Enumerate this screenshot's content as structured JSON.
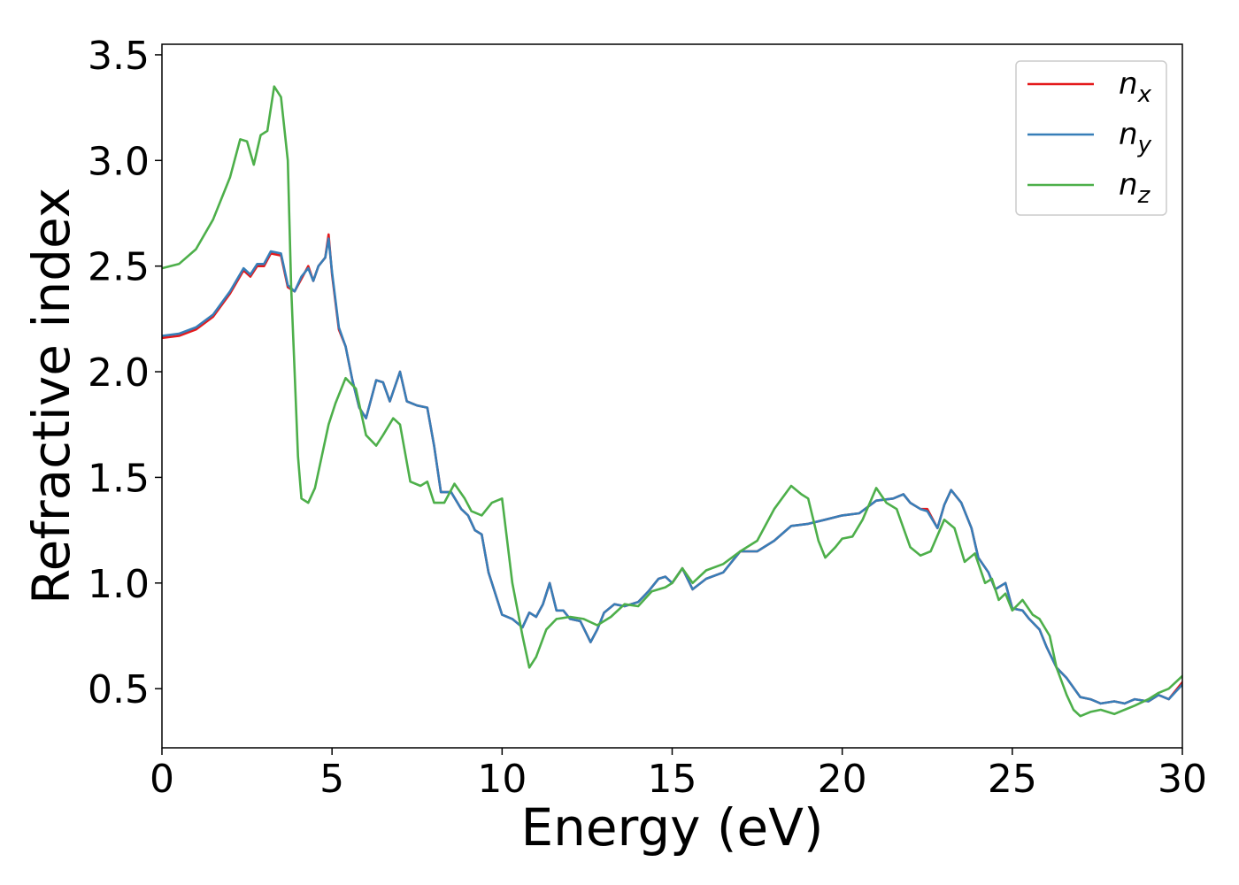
{
  "chart_data": {
    "type": "line",
    "title": "",
    "xlabel": "Energy (eV)",
    "ylabel": "Refractive index",
    "xlim": [
      0,
      30
    ],
    "ylim": [
      0.22,
      3.55
    ],
    "xticks": [
      0,
      5,
      10,
      15,
      20,
      25,
      30
    ],
    "xtick_labels": [
      "0",
      "5",
      "10",
      "15",
      "20",
      "25",
      "30"
    ],
    "yticks": [
      0.5,
      1.0,
      1.5,
      2.0,
      2.5,
      3.0,
      3.5
    ],
    "ytick_labels": [
      "0.5",
      "1.0",
      "1.5",
      "2.0",
      "2.5",
      "3.0",
      "3.5"
    ],
    "grid": false,
    "legend_position": "top-right",
    "series": [
      {
        "name": "nx",
        "label_base": "n",
        "label_sub": "x",
        "color": "#e41a1c",
        "x": [
          0,
          0.5,
          1,
          1.5,
          2,
          2.4,
          2.6,
          2.8,
          3.0,
          3.2,
          3.5,
          3.7,
          3.9,
          4.1,
          4.3,
          4.45,
          4.6,
          4.8,
          4.9,
          5.0,
          5.2,
          5.4,
          5.6,
          5.8,
          6.0,
          6.3,
          6.5,
          6.7,
          7.0,
          7.2,
          7.5,
          7.8,
          8.0,
          8.2,
          8.5,
          8.8,
          9.0,
          9.2,
          9.4,
          9.6,
          10.0,
          10.3,
          10.6,
          10.8,
          11.0,
          11.2,
          11.4,
          11.6,
          11.8,
          12.0,
          12.3,
          12.6,
          12.8,
          13.0,
          13.3,
          13.6,
          14.0,
          14.3,
          14.6,
          14.8,
          15.0,
          15.3,
          15.6,
          16.0,
          16.5,
          17.0,
          17.5,
          18.0,
          18.5,
          19.0,
          19.5,
          20.0,
          20.5,
          21.0,
          21.5,
          21.8,
          22.0,
          22.3,
          22.5,
          22.8,
          23.0,
          23.2,
          23.5,
          23.8,
          24.0,
          24.3,
          24.5,
          24.8,
          25.0,
          25.3,
          25.5,
          25.8,
          26.0,
          26.3,
          26.6,
          27.0,
          27.3,
          27.6,
          28.0,
          28.3,
          28.6,
          29.0,
          29.3,
          29.6,
          30.0
        ],
        "y": [
          2.16,
          2.17,
          2.2,
          2.26,
          2.37,
          2.48,
          2.45,
          2.5,
          2.5,
          2.56,
          2.55,
          2.4,
          2.38,
          2.44,
          2.5,
          2.43,
          2.5,
          2.54,
          2.65,
          2.46,
          2.2,
          2.12,
          1.96,
          1.83,
          1.78,
          1.96,
          1.95,
          1.86,
          2.0,
          1.86,
          1.84,
          1.83,
          1.65,
          1.43,
          1.43,
          1.35,
          1.32,
          1.25,
          1.23,
          1.05,
          0.85,
          0.83,
          0.79,
          0.86,
          0.84,
          0.9,
          1.0,
          0.87,
          0.87,
          0.83,
          0.82,
          0.72,
          0.78,
          0.86,
          0.9,
          0.89,
          0.91,
          0.96,
          1.02,
          1.03,
          1.0,
          1.07,
          0.97,
          1.02,
          1.05,
          1.15,
          1.15,
          1.2,
          1.27,
          1.28,
          1.3,
          1.32,
          1.33,
          1.39,
          1.4,
          1.42,
          1.38,
          1.35,
          1.35,
          1.26,
          1.37,
          1.44,
          1.38,
          1.26,
          1.12,
          1.05,
          0.97,
          1.0,
          0.88,
          0.87,
          0.83,
          0.78,
          0.7,
          0.6,
          0.55,
          0.46,
          0.45,
          0.43,
          0.44,
          0.43,
          0.45,
          0.44,
          0.47,
          0.45,
          0.53
        ]
      },
      {
        "name": "ny",
        "label_base": "n",
        "label_sub": "y",
        "color": "#377eb8",
        "x": [
          0,
          0.5,
          1,
          1.5,
          2,
          2.4,
          2.6,
          2.8,
          3.0,
          3.2,
          3.5,
          3.7,
          3.9,
          4.1,
          4.3,
          4.45,
          4.6,
          4.8,
          4.9,
          5.0,
          5.2,
          5.4,
          5.6,
          5.8,
          6.0,
          6.3,
          6.5,
          6.7,
          7.0,
          7.2,
          7.5,
          7.8,
          8.0,
          8.2,
          8.5,
          8.8,
          9.0,
          9.2,
          9.4,
          9.6,
          10.0,
          10.3,
          10.6,
          10.8,
          11.0,
          11.2,
          11.4,
          11.6,
          11.8,
          12.0,
          12.3,
          12.6,
          12.8,
          13.0,
          13.3,
          13.6,
          14.0,
          14.3,
          14.6,
          14.8,
          15.0,
          15.3,
          15.6,
          16.0,
          16.5,
          17.0,
          17.5,
          18.0,
          18.5,
          19.0,
          19.5,
          20.0,
          20.5,
          21.0,
          21.5,
          21.8,
          22.0,
          22.3,
          22.5,
          22.8,
          23.0,
          23.2,
          23.5,
          23.8,
          24.0,
          24.3,
          24.5,
          24.8,
          25.0,
          25.3,
          25.5,
          25.8,
          26.0,
          26.3,
          26.6,
          27.0,
          27.3,
          27.6,
          28.0,
          28.3,
          28.6,
          29.0,
          29.3,
          29.6,
          30.0
        ],
        "y": [
          2.17,
          2.18,
          2.21,
          2.27,
          2.38,
          2.49,
          2.46,
          2.51,
          2.51,
          2.57,
          2.56,
          2.41,
          2.38,
          2.45,
          2.49,
          2.43,
          2.5,
          2.54,
          2.63,
          2.47,
          2.21,
          2.12,
          1.96,
          1.83,
          1.78,
          1.96,
          1.95,
          1.86,
          2.0,
          1.86,
          1.84,
          1.83,
          1.65,
          1.43,
          1.43,
          1.35,
          1.32,
          1.25,
          1.23,
          1.05,
          0.85,
          0.83,
          0.79,
          0.86,
          0.84,
          0.9,
          1.0,
          0.87,
          0.87,
          0.83,
          0.82,
          0.72,
          0.78,
          0.86,
          0.9,
          0.89,
          0.91,
          0.96,
          1.02,
          1.03,
          1.0,
          1.07,
          0.97,
          1.02,
          1.05,
          1.15,
          1.15,
          1.2,
          1.27,
          1.28,
          1.3,
          1.32,
          1.33,
          1.39,
          1.4,
          1.42,
          1.38,
          1.35,
          1.34,
          1.26,
          1.37,
          1.44,
          1.38,
          1.26,
          1.12,
          1.05,
          0.97,
          1.0,
          0.88,
          0.87,
          0.83,
          0.78,
          0.7,
          0.6,
          0.55,
          0.46,
          0.45,
          0.43,
          0.44,
          0.43,
          0.45,
          0.44,
          0.47,
          0.45,
          0.52
        ]
      },
      {
        "name": "nz",
        "label_base": "n",
        "label_sub": "z",
        "color": "#4daf4a",
        "x": [
          0,
          0.5,
          1,
          1.5,
          2,
          2.3,
          2.5,
          2.7,
          2.9,
          3.1,
          3.3,
          3.5,
          3.7,
          3.8,
          3.9,
          4.0,
          4.1,
          4.3,
          4.5,
          4.7,
          4.9,
          5.1,
          5.4,
          5.7,
          6.0,
          6.3,
          6.5,
          6.8,
          7.0,
          7.3,
          7.6,
          7.8,
          8.0,
          8.3,
          8.6,
          8.9,
          9.1,
          9.4,
          9.7,
          10.0,
          10.3,
          10.6,
          10.8,
          11.0,
          11.3,
          11.6,
          12.0,
          12.4,
          12.8,
          13.2,
          13.6,
          14.0,
          14.4,
          14.8,
          15.0,
          15.3,
          15.6,
          16.0,
          16.5,
          17.0,
          17.5,
          18.0,
          18.5,
          18.8,
          19.0,
          19.3,
          19.5,
          19.8,
          20.0,
          20.3,
          20.6,
          21.0,
          21.3,
          21.6,
          22.0,
          22.3,
          22.6,
          23.0,
          23.3,
          23.6,
          23.9,
          24.2,
          24.4,
          24.6,
          24.8,
          25.0,
          25.3,
          25.6,
          25.8,
          26.1,
          26.3,
          26.6,
          26.8,
          27.0,
          27.3,
          27.6,
          28.0,
          28.3,
          28.6,
          29.0,
          29.3,
          29.6,
          30.0
        ],
        "y": [
          2.49,
          2.51,
          2.58,
          2.72,
          2.92,
          3.1,
          3.09,
          2.98,
          3.12,
          3.14,
          3.35,
          3.3,
          3.0,
          2.4,
          2.0,
          1.6,
          1.4,
          1.38,
          1.45,
          1.6,
          1.75,
          1.85,
          1.97,
          1.92,
          1.7,
          1.65,
          1.7,
          1.78,
          1.75,
          1.48,
          1.46,
          1.48,
          1.38,
          1.38,
          1.47,
          1.4,
          1.34,
          1.32,
          1.38,
          1.4,
          1.0,
          0.75,
          0.6,
          0.65,
          0.78,
          0.83,
          0.84,
          0.83,
          0.8,
          0.84,
          0.9,
          0.89,
          0.96,
          0.98,
          1.0,
          1.07,
          1.0,
          1.06,
          1.09,
          1.15,
          1.2,
          1.35,
          1.46,
          1.42,
          1.4,
          1.2,
          1.12,
          1.17,
          1.21,
          1.22,
          1.3,
          1.45,
          1.38,
          1.35,
          1.17,
          1.13,
          1.15,
          1.3,
          1.26,
          1.1,
          1.14,
          1.0,
          1.02,
          0.92,
          0.95,
          0.87,
          0.92,
          0.85,
          0.83,
          0.75,
          0.6,
          0.47,
          0.4,
          0.37,
          0.39,
          0.4,
          0.38,
          0.4,
          0.42,
          0.45,
          0.48,
          0.5,
          0.56
        ]
      }
    ]
  }
}
